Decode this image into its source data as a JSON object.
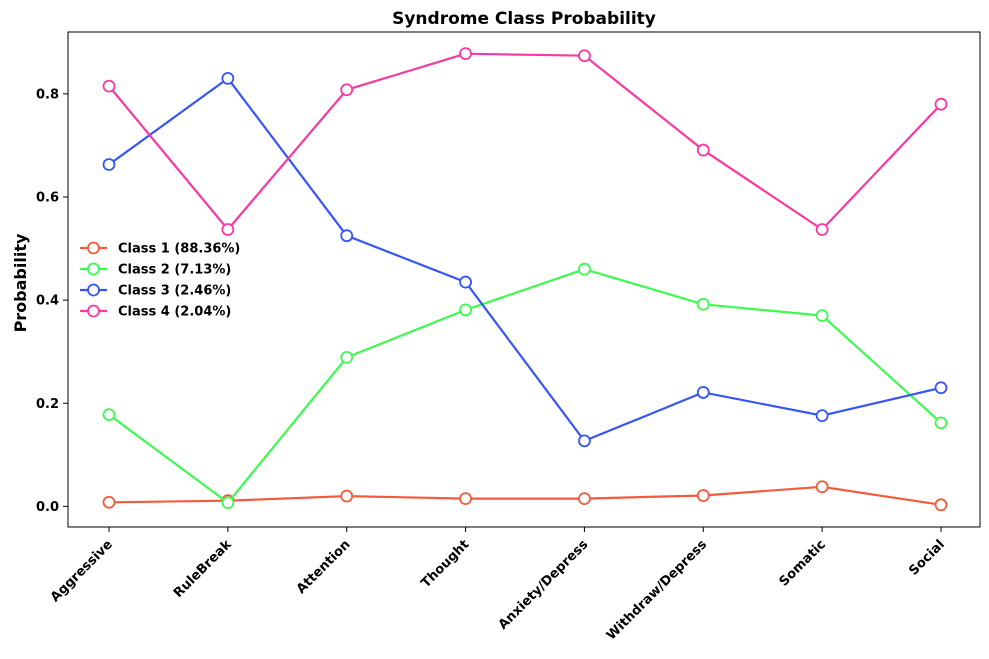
{
  "chart_data": {
    "type": "line",
    "title": "Syndrome Class Probability",
    "xlabel": "",
    "ylabel": "Probability",
    "categories": [
      "Aggressive",
      "RuleBreak",
      "Attention",
      "Thought",
      "Anxiety/Depress",
      "Withdraw/Depress",
      "Somatic",
      "Social"
    ],
    "ylim": [
      -0.04,
      0.92
    ],
    "yticks": [
      0.0,
      0.2,
      0.4,
      0.6,
      0.8
    ],
    "ytick_labels": [
      "0.0",
      "0.2",
      "0.4",
      "0.6",
      "0.8"
    ],
    "grid": false,
    "legend_position": "center-left",
    "series": [
      {
        "name": "Class 1 (88.36%)",
        "color": "#f45a3c",
        "values": [
          0.008,
          0.011,
          0.02,
          0.015,
          0.015,
          0.021,
          0.038,
          0.003
        ]
      },
      {
        "name": "Class 2 (7.13%)",
        "color": "#3dfb4e",
        "values": [
          0.178,
          0.007,
          0.289,
          0.381,
          0.46,
          0.392,
          0.37,
          0.162
        ]
      },
      {
        "name": "Class 3 (2.46%)",
        "color": "#3456f5",
        "values": [
          0.663,
          0.83,
          0.525,
          0.435,
          0.127,
          0.221,
          0.176,
          0.23
        ]
      },
      {
        "name": "Class 4 (2.04%)",
        "color": "#f739a1",
        "values": [
          0.815,
          0.537,
          0.808,
          0.878,
          0.874,
          0.691,
          0.537,
          0.78
        ]
      }
    ]
  }
}
